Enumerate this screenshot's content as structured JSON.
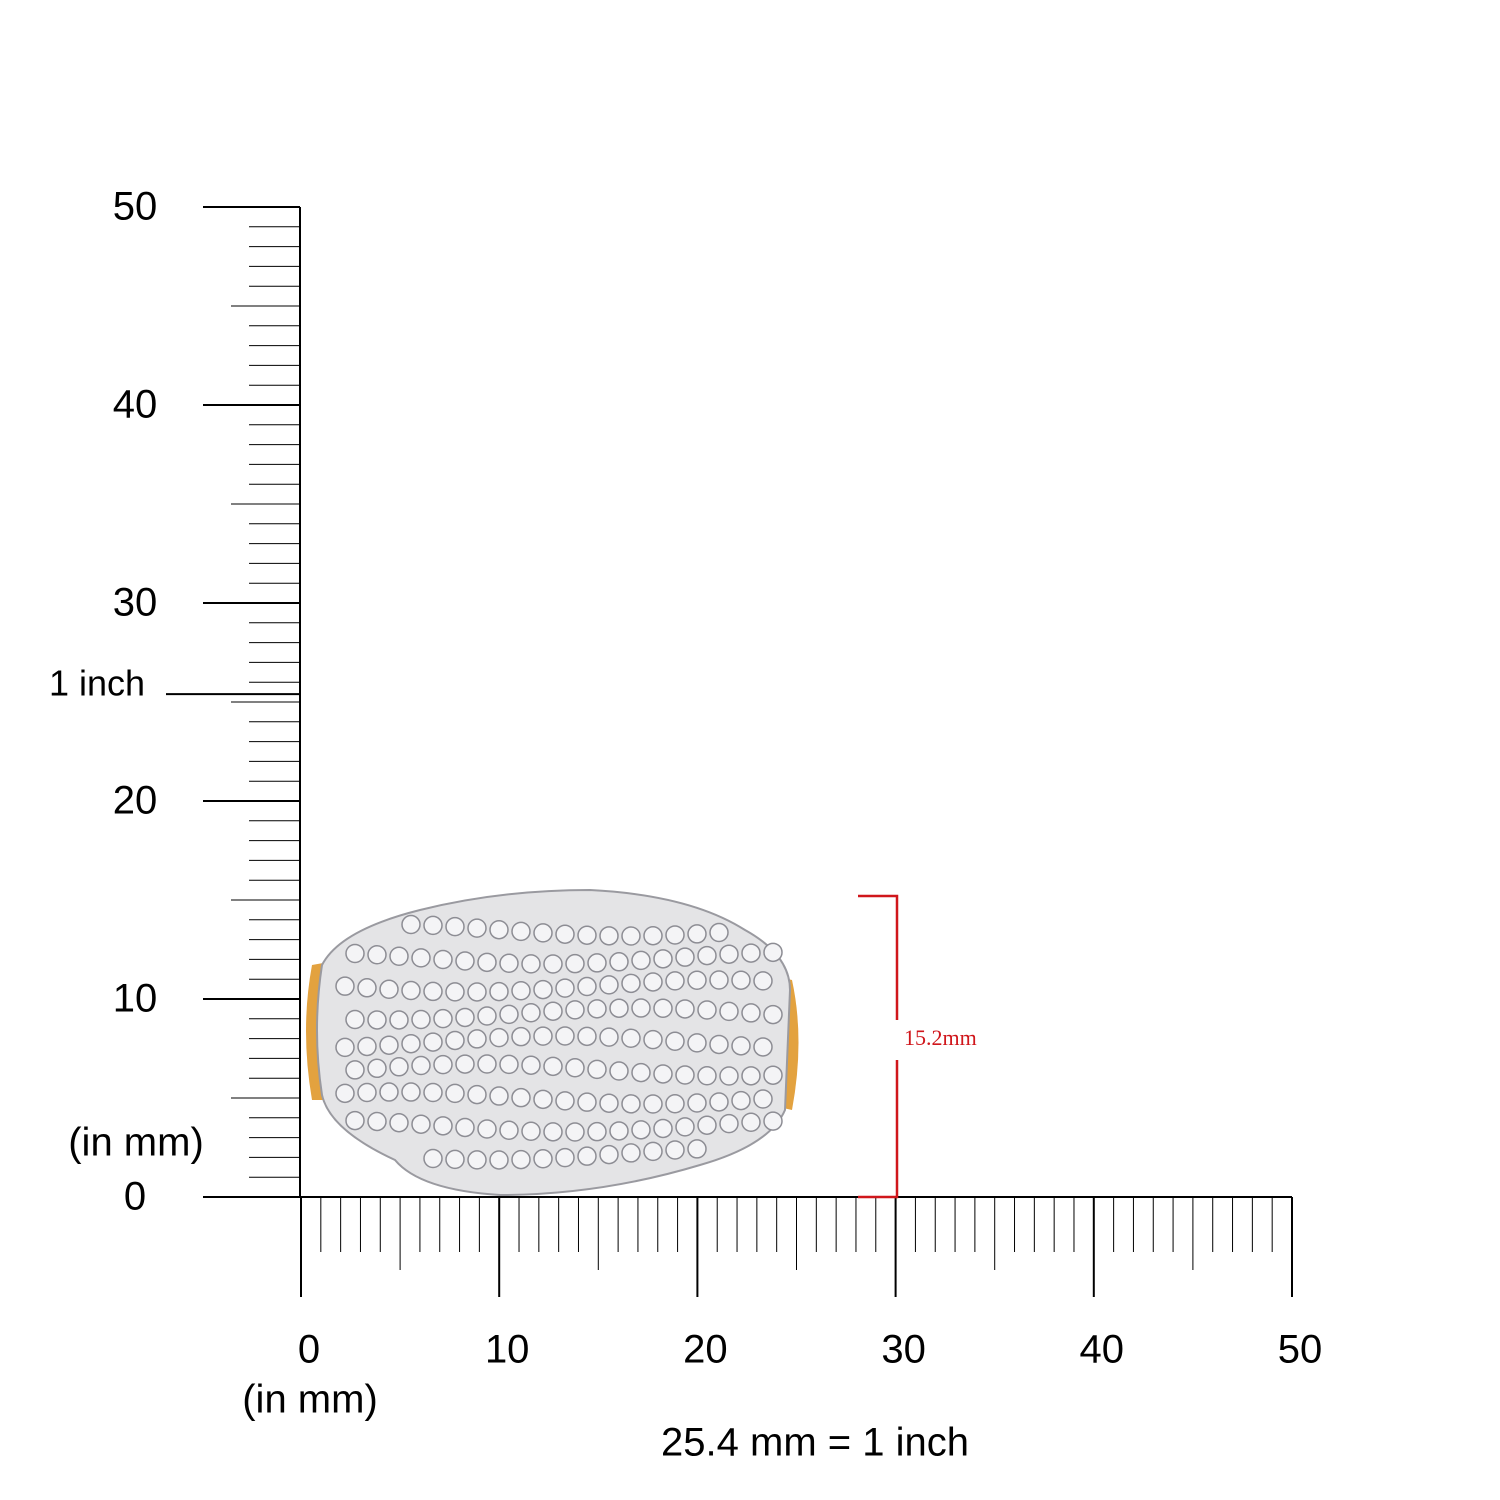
{
  "vertical_ruler": {
    "range": [
      0,
      50
    ],
    "labels": [
      0,
      10,
      20,
      30,
      40,
      50
    ],
    "unit_label": "(in mm)",
    "inch_marker": {
      "value": 25.4,
      "label": "1 inch"
    }
  },
  "horizontal_ruler": {
    "range": [
      0,
      50
    ],
    "labels": [
      0,
      10,
      20,
      30,
      40,
      50
    ],
    "unit_label": "(in mm)"
  },
  "conversion_note": "25.4 mm = 1 inch",
  "dimension": {
    "value": 15.2,
    "label": "15.2mm"
  }
}
